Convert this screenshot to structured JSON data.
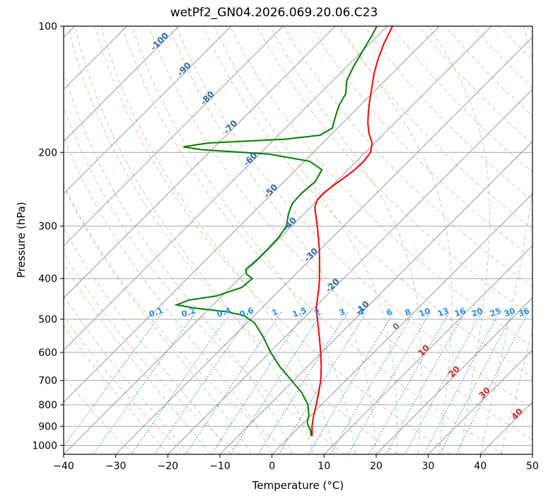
{
  "chart_data": {
    "type": "skew-t",
    "title": "wetPf2_GN04.2026.069.20.06.C23",
    "xlabel": "Temperature (°C)",
    "ylabel": "Pressure (hPa)",
    "xlim": [
      -40,
      50
    ],
    "ylim": [
      1050,
      100
    ],
    "x_ticks": [
      "−40",
      "−30",
      "−20",
      "−10",
      "0",
      "10",
      "20",
      "30",
      "40",
      "50"
    ],
    "y_ticks": [
      "100",
      "200",
      "300",
      "400",
      "500",
      "600",
      "700",
      "800",
      "900",
      "1000"
    ],
    "temperature": {
      "name": "Temperature",
      "color": "#ff0000",
      "points": [
        [
          950,
          4.2
        ],
        [
          900,
          2.3
        ],
        [
          850,
          0.6
        ],
        [
          800,
          -1.0
        ],
        [
          750,
          -2.8
        ],
        [
          700,
          -4.8
        ],
        [
          650,
          -7.3
        ],
        [
          600,
          -10.2
        ],
        [
          550,
          -13.5
        ],
        [
          500,
          -17.2
        ],
        [
          470,
          -19.6
        ],
        [
          450,
          -20.9
        ],
        [
          420,
          -23.0
        ],
        [
          400,
          -24.6
        ],
        [
          370,
          -27.3
        ],
        [
          340,
          -30.3
        ],
        [
          310,
          -33.8
        ],
        [
          290,
          -36.4
        ],
        [
          280,
          -37.8
        ],
        [
          270,
          -39.2
        ],
        [
          260,
          -40.1
        ],
        [
          250,
          -40.2
        ],
        [
          240,
          -39.8
        ],
        [
          230,
          -39.2
        ],
        [
          220,
          -38.7
        ],
        [
          210,
          -38.6
        ],
        [
          200,
          -39.0
        ],
        [
          190,
          -40.5
        ],
        [
          180,
          -43.0
        ],
        [
          170,
          -45.2
        ],
        [
          160,
          -47.2
        ],
        [
          150,
          -49.2
        ],
        [
          140,
          -51.2
        ],
        [
          130,
          -53.4
        ],
        [
          120,
          -55.4
        ],
        [
          110,
          -57.3
        ],
        [
          100,
          -59.0
        ]
      ]
    },
    "dewpoint": {
      "name": "Dewpoint",
      "color": "#008000",
      "points": [
        [
          950,
          4.0
        ],
        [
          920,
          2.8
        ],
        [
          900,
          1.6
        ],
        [
          880,
          0.6
        ],
        [
          850,
          -0.3
        ],
        [
          800,
          -2.6
        ],
        [
          750,
          -6.0
        ],
        [
          700,
          -10.4
        ],
        [
          650,
          -15.2
        ],
        [
          600,
          -19.8
        ],
        [
          550,
          -24.3
        ],
        [
          510,
          -28.6
        ],
        [
          490,
          -32.0
        ],
        [
          480,
          -36.0
        ],
        [
          470,
          -43.0
        ],
        [
          462,
          -47.0
        ],
        [
          450,
          -45.5
        ],
        [
          440,
          -41.0
        ],
        [
          420,
          -37.8
        ],
        [
          400,
          -37.5
        ],
        [
          390,
          -39.5
        ],
        [
          380,
          -40.5
        ],
        [
          360,
          -40.2
        ],
        [
          340,
          -40.2
        ],
        [
          320,
          -40.3
        ],
        [
          300,
          -41.0
        ],
        [
          280,
          -43.0
        ],
        [
          265,
          -44.2
        ],
        [
          250,
          -44.4
        ],
        [
          235,
          -44.0
        ],
        [
          220,
          -45.0
        ],
        [
          210,
          -49.0
        ],
        [
          202,
          -58.0
        ],
        [
          197,
          -72.0
        ],
        [
          194,
          -76.0
        ],
        [
          190,
          -72.0
        ],
        [
          186,
          -58.0
        ],
        [
          182,
          -52.0
        ],
        [
          175,
          -51.0
        ],
        [
          165,
          -52.5
        ],
        [
          155,
          -54.0
        ],
        [
          145,
          -55.0
        ],
        [
          135,
          -57.3
        ],
        [
          125,
          -58.7
        ],
        [
          115,
          -59.9
        ],
        [
          105,
          -61.2
        ],
        [
          100,
          -62.0
        ]
      ]
    },
    "isotherm_labels": [
      "-100",
      "-90",
      "-80",
      "-70",
      "-60",
      "-50",
      "-40",
      "-30",
      "-20",
      "-10"
    ],
    "mixing_ratio_labels": [
      "0.1",
      "0.2",
      "0.4",
      "0.6",
      "1",
      "1.5",
      "2",
      "3",
      "4",
      "6",
      "8",
      "10",
      "13",
      "16",
      "20",
      "25",
      "30",
      "36"
    ],
    "moist_adiabat_labels": [
      "0",
      "10",
      "20",
      "30",
      "40"
    ]
  }
}
